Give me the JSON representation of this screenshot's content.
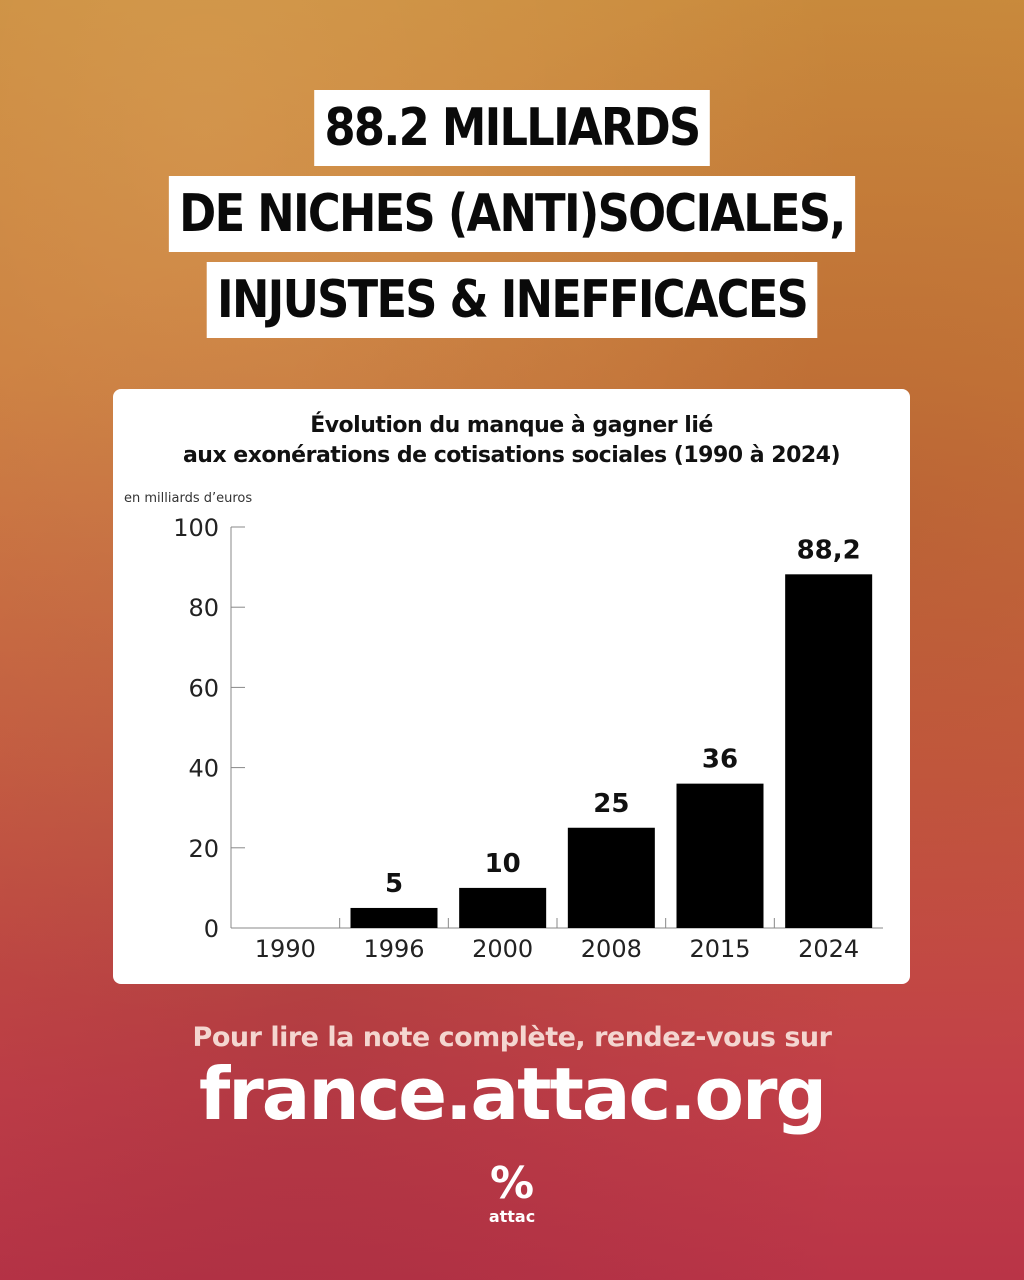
{
  "headline": [
    "88.2 MILLIARDS",
    "DE NICHES (ANTI)SOCIALES,",
    "INJUSTES & INEFFICACES"
  ],
  "chart_data": {
    "type": "bar",
    "title_lines": [
      "Évolution du manque à gagner lié",
      "aux exonérations de cotisations sociales (1990 à 2024)"
    ],
    "unit_label": "en milliards d’euros",
    "categories": [
      "1990",
      "1996",
      "2000",
      "2008",
      "2015",
      "2024"
    ],
    "values": [
      0,
      5,
      10,
      25,
      36,
      88.2
    ],
    "value_labels": [
      "",
      "5",
      "10",
      "25",
      "36",
      "88,2"
    ],
    "yticks": [
      "0",
      "20",
      "40",
      "60",
      "80",
      "100"
    ],
    "ylim": [
      0,
      100
    ],
    "bar_color": "#000000",
    "grid": false
  },
  "footer": {
    "cta": "Pour lire la note complète, rendez-vous sur",
    "site": "france.attac.org"
  },
  "logo": {
    "word": "attac",
    "icon": "percent-icon"
  }
}
